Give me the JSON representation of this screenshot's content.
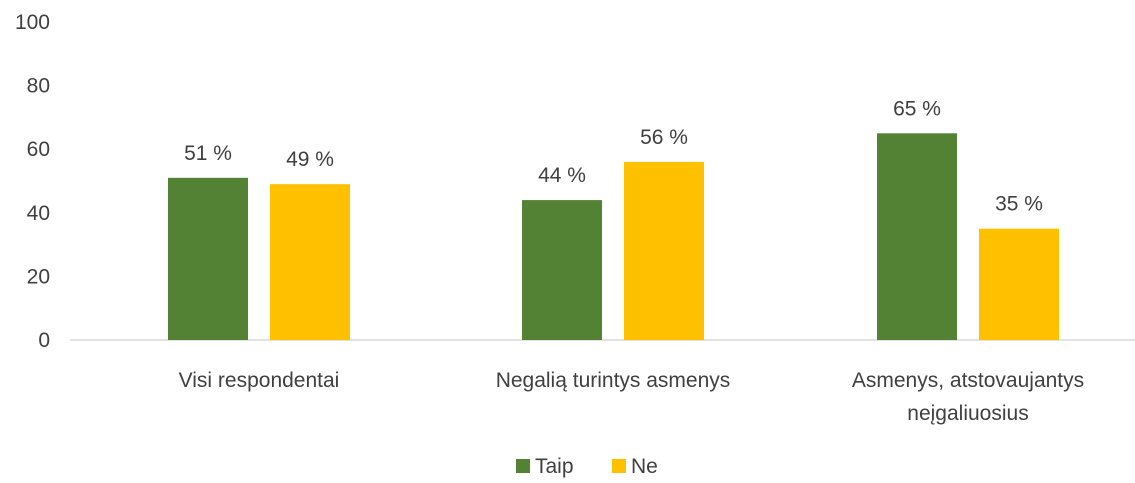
{
  "chart_data": {
    "type": "bar",
    "categories": [
      [
        "Visi respondentai"
      ],
      [
        "Negalią turintys asmenys"
      ],
      [
        "Asmenys, atstovaujantys",
        "neįgaliuosius"
      ]
    ],
    "series": [
      {
        "name": "Taip",
        "color": "#548235",
        "values": [
          51,
          44,
          65
        ],
        "labels": [
          "51 %",
          "44 %",
          "65 %"
        ]
      },
      {
        "name": "Ne",
        "color": "#FFC000",
        "values": [
          49,
          56,
          35
        ],
        "labels": [
          "49 %",
          "56 %",
          "35 %"
        ]
      }
    ],
    "yticks": [
      "0",
      "20",
      "40",
      "60",
      "80",
      "100"
    ],
    "ylim": [
      0,
      100
    ],
    "grid": false,
    "legend": "bottom-center"
  }
}
